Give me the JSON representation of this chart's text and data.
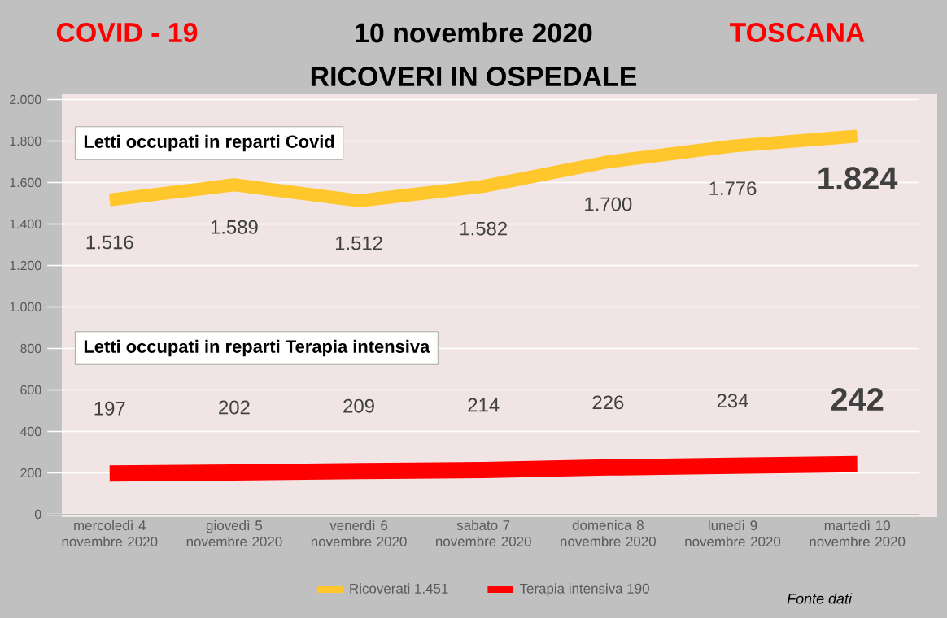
{
  "chart_data": {
    "type": "line",
    "title": "10 novembre 2020",
    "subtitle": "RICOVERI IN OSPEDALE",
    "categories": [
      "mercoledì 4 novembre 2020",
      "giovedì 5 novembre 2020",
      "venerdì 6 novembre 2020",
      "sabato 7 novembre 2020",
      "domenica 8 novembre 2020",
      "lunedì 9 novembre 2020",
      "martedì 10 novembre 2020"
    ],
    "series": [
      {
        "name": "Ricoverati 1.451",
        "color": "#ffc72c",
        "values": [
          1516,
          1589,
          1512,
          1582,
          1700,
          1776,
          1824
        ],
        "value_labels": [
          "1.516",
          "1.589",
          "1.512",
          "1.582",
          "1.700",
          "1.776",
          "1.824"
        ]
      },
      {
        "name": "Terapia intensiva 190",
        "color": "#ff0000",
        "values": [
          197,
          202,
          209,
          214,
          226,
          234,
          242
        ],
        "value_labels": [
          "197",
          "202",
          "209",
          "214",
          "226",
          "234",
          "242"
        ]
      }
    ],
    "ylim": [
      0,
      2000
    ],
    "yticks": [
      {
        "value": 0,
        "label": "0"
      },
      {
        "value": 200,
        "label": "200"
      },
      {
        "value": 400,
        "label": "400"
      },
      {
        "value": 600,
        "label": "600"
      },
      {
        "value": 800,
        "label": "800"
      },
      {
        "value": 1000,
        "label": "1.000"
      },
      {
        "value": 1200,
        "label": "1.200"
      },
      {
        "value": 1400,
        "label": "1.400"
      },
      {
        "value": 1600,
        "label": "1.600"
      },
      {
        "value": 1800,
        "label": "1.800"
      },
      {
        "value": 2000,
        "label": "2.000"
      }
    ],
    "annotations": [
      "COVID - 19",
      "TOSCANA",
      "Letti occupati in reparti Covid",
      "Letti occupati in reparti Terapia intensiva",
      "Fonte dati"
    ],
    "grid": "y",
    "legend": "bottom"
  }
}
